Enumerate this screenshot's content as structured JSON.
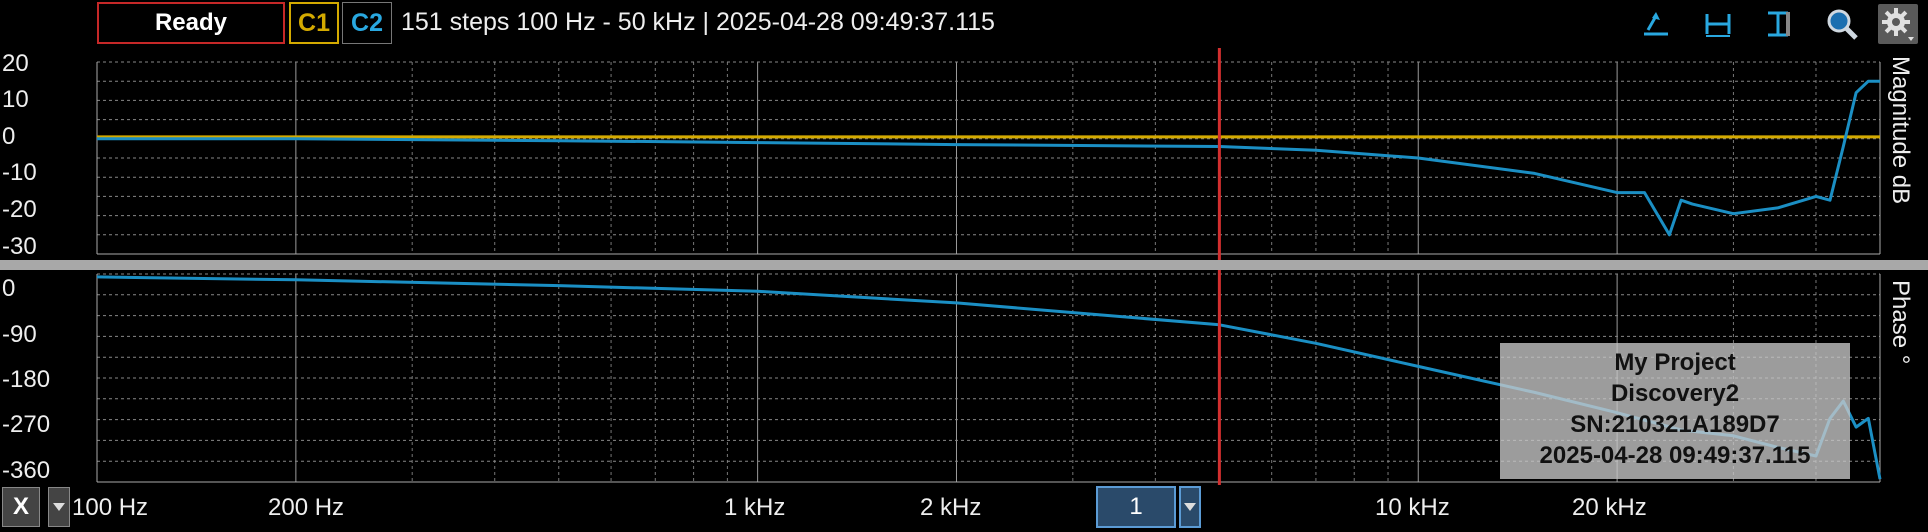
{
  "toolbar": {
    "status": "Ready",
    "channel1": "C1",
    "channel2": "C2",
    "info": "151 steps  100 Hz - 50 kHz | 2025-04-28 09:49:37.115"
  },
  "colors": {
    "c1": "#d4aa00",
    "c2": "#1b8fc4",
    "cursor": "#d32f2f",
    "grid": "#777777"
  },
  "magnitude_panel": {
    "axis_title": "Magnitude  dB",
    "y_ticks": [
      "20",
      "10",
      "0",
      "-10",
      "-20",
      "-30"
    ]
  },
  "phase_panel": {
    "axis_title": "Phase  °",
    "y_ticks": [
      "0",
      "-90",
      "-180",
      "-270",
      "-360"
    ]
  },
  "x_axis": {
    "button": "X",
    "tick_labels": [
      "100 Hz",
      "200 Hz",
      "1 kHz",
      "2 kHz",
      "10 kHz",
      "20 kHz"
    ]
  },
  "cursor": {
    "label": "1",
    "frequency_hz": 5000
  },
  "overlay": {
    "line1": "My Project",
    "line2": "Discovery2",
    "line3": "SN:210321A189D7",
    "line4": "2025-04-28 09:49:37.115"
  },
  "chart_data": [
    {
      "type": "line",
      "title": "",
      "xlabel": "",
      "ylabel": "Magnitude  dB",
      "x_scale": "log",
      "xlim": [
        100,
        50000
      ],
      "ylim": [
        -30,
        20
      ],
      "series": [
        {
          "name": "C1",
          "color": "#d4aa00",
          "x": [
            100,
            200,
            500,
            1000,
            2000,
            5000,
            10000,
            20000,
            30000,
            40000,
            50000
          ],
          "y": [
            0.5,
            0.5,
            0.5,
            0.5,
            0.5,
            0.5,
            0.5,
            0.5,
            0.5,
            0.5,
            0.5
          ]
        },
        {
          "name": "C2",
          "color": "#1b8fc4",
          "x": [
            100,
            200,
            500,
            1000,
            2000,
            5000,
            7000,
            10000,
            15000,
            20000,
            22000,
            24000,
            25000,
            26000,
            30000,
            35000,
            40000,
            42000,
            44000,
            46000,
            48000,
            50000
          ],
          "y": [
            0,
            0,
            -0.5,
            -1,
            -1.5,
            -2,
            -3,
            -5,
            -9,
            -14,
            -14,
            -25,
            -16,
            -17,
            -19.5,
            -18,
            -15,
            -16,
            -2,
            12,
            15,
            15
          ]
        }
      ]
    },
    {
      "type": "line",
      "title": "",
      "xlabel": "",
      "ylabel": "Phase  °",
      "x_scale": "log",
      "xlim": [
        100,
        50000
      ],
      "ylim": [
        -360,
        0
      ],
      "series": [
        {
          "name": "C2",
          "color": "#1b8fc4",
          "x": [
            100,
            200,
            500,
            1000,
            2000,
            5000,
            7000,
            10000,
            15000,
            20000,
            25000,
            30000,
            35000,
            40000,
            42000,
            44000,
            46000,
            48000,
            50000
          ],
          "y": [
            -5,
            -10,
            -20,
            -30,
            -50,
            -88,
            -120,
            -160,
            -205,
            -240,
            -270,
            -280,
            -300,
            -315,
            -250,
            -220,
            -265,
            -250,
            -355
          ]
        }
      ]
    }
  ]
}
